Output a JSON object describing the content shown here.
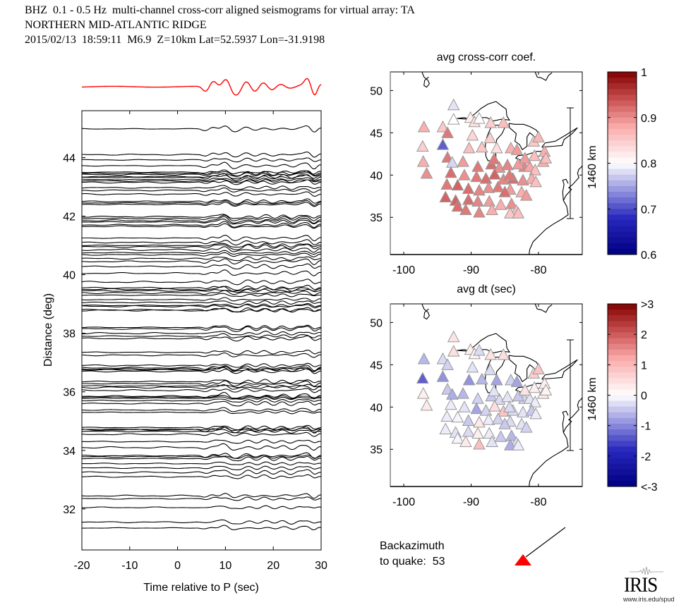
{
  "header": {
    "line1": "BHZ  0.1 - 0.5 Hz  multi-channel cross-corr aligned seismograms for virtual array: TA",
    "line2": "NORTHERN MID-ATLANTIC RIDGE",
    "line3": "2015/02/13  18:59:11  M6.9  Z=10km Lat=52.5937 Lon=-31.9198"
  },
  "chart_data": [
    {
      "type": "line",
      "name": "aligned-seismograms",
      "xlabel": "Time relative to P (sec)",
      "ylabel": "Distance (deg)",
      "xlim": [
        -20,
        30
      ],
      "ylim": [
        30.6,
        45.6
      ],
      "xticks": [
        -20,
        -10,
        0,
        10,
        20,
        30
      ],
      "yticks": [
        32,
        34,
        36,
        38,
        40,
        42,
        44
      ],
      "stack_trace_color": "#ff0000",
      "trace_color": "#000000",
      "trace_distances_deg": [
        44.98,
        44.1,
        43.92,
        43.72,
        43.5,
        43.46,
        43.42,
        43.35,
        43.32,
        43.25,
        43.2,
        43.15,
        42.97,
        42.88,
        42.75,
        42.5,
        42.45,
        42.4,
        41.98,
        41.92,
        41.85,
        41.8,
        41.7,
        41.65,
        41.25,
        41.1,
        41.0,
        40.95,
        40.85,
        40.75,
        40.68,
        40.55,
        40.45,
        40.28,
        40.05,
        39.75,
        39.55,
        39.5,
        39.45,
        39.38,
        39.3,
        39.15,
        39.05,
        38.95,
        38.92,
        38.8,
        38.78,
        38.2,
        38.15,
        38.0,
        37.9,
        37.82,
        37.35,
        37.25,
        36.9,
        36.82,
        36.78,
        36.75,
        36.7,
        36.35,
        36.28,
        36.2,
        36.15,
        36.05,
        35.85,
        35.82,
        35.78,
        35.7,
        35.6,
        35.38,
        35.3,
        34.78,
        34.72,
        34.7,
        34.65,
        34.55,
        34.3,
        34.1,
        33.82,
        33.78,
        33.72,
        33.55,
        33.4,
        33.25,
        33.1,
        32.45,
        32.35,
        32.05,
        31.55,
        31.35
      ]
    },
    {
      "type": "scatter",
      "name": "avg-cross-corr-map",
      "title": "avg cross-corr coef.",
      "xlim": [
        -102,
        -73.5
      ],
      "ylim": [
        30.6,
        52.2
      ],
      "xticks": [
        -100,
        -90,
        -80
      ],
      "yticks": [
        35,
        40,
        45,
        50
      ],
      "scale_bar_label": "1460 km",
      "colorbar": {
        "min": 0.6,
        "max": 1.0,
        "ticks": [
          "1",
          "0.9",
          "0.8",
          "0.7",
          "0.6"
        ]
      },
      "stations": [
        [
          -97,
          45.7,
          0.9
        ],
        [
          -94.2,
          45.7,
          0.87
        ],
        [
          -93.5,
          45,
          0.95
        ],
        [
          -97.2,
          43.4,
          0.86
        ],
        [
          -94.2,
          43.6,
          0.68
        ],
        [
          -93.5,
          42.1,
          0.95
        ],
        [
          -97.1,
          41.6,
          0.9
        ],
        [
          -96.6,
          40.2,
          0.93
        ],
        [
          -92.6,
          48.3,
          0.78
        ],
        [
          -92.6,
          46.6,
          0.8
        ],
        [
          -92.8,
          41.5,
          0.77
        ],
        [
          -90.1,
          46.8,
          0.82
        ],
        [
          -89.5,
          46.3,
          0.84
        ],
        [
          -87.1,
          46.2,
          0.86
        ],
        [
          -85.2,
          46.2,
          0.88
        ],
        [
          -88.8,
          46.7,
          0.8
        ],
        [
          -89.8,
          44.7,
          0.85
        ],
        [
          -87.2,
          44.4,
          0.86
        ],
        [
          -90.3,
          43.2,
          0.88
        ],
        [
          -88.4,
          43.3,
          0.87
        ],
        [
          -86.2,
          43.2,
          0.84
        ],
        [
          -84.1,
          43.2,
          0.9
        ],
        [
          -83.2,
          43.0,
          0.92
        ],
        [
          -80.7,
          44.0,
          0.87
        ],
        [
          -80.0,
          44.5,
          0.89
        ],
        [
          -82.1,
          41.0,
          0.94
        ],
        [
          -79.3,
          41.6,
          0.9
        ],
        [
          -79.1,
          42.8,
          0.9
        ],
        [
          -78.9,
          42.0,
          0.88
        ],
        [
          -91.2,
          41.6,
          0.92
        ],
        [
          -89.0,
          41.0,
          0.95
        ],
        [
          -87.0,
          41.3,
          0.96
        ],
        [
          -85.8,
          40.9,
          0.93
        ],
        [
          -84.6,
          41.2,
          0.94
        ],
        [
          -83.0,
          41.3,
          0.92
        ],
        [
          -81.3,
          41.0,
          0.91
        ],
        [
          -80.5,
          40.6,
          0.88
        ],
        [
          -93.0,
          40.3,
          0.96
        ],
        [
          -91.0,
          40.0,
          0.93
        ],
        [
          -89.2,
          39.8,
          0.95
        ],
        [
          -87.8,
          39.6,
          0.96
        ],
        [
          -86.5,
          40.1,
          0.97
        ],
        [
          -85.2,
          39.5,
          0.94
        ],
        [
          -83.8,
          39.6,
          0.96
        ],
        [
          -82.3,
          39.4,
          0.93
        ],
        [
          -81.0,
          39.6,
          0.9
        ],
        [
          -80.4,
          39.2,
          0.88
        ],
        [
          -93.6,
          38.9,
          0.95
        ],
        [
          -92.0,
          38.8,
          0.97
        ],
        [
          -90.4,
          38.4,
          0.96
        ],
        [
          -88.8,
          38.2,
          0.94
        ],
        [
          -87.4,
          38.5,
          0.93
        ],
        [
          -86.0,
          38.6,
          0.95
        ],
        [
          -84.2,
          38.3,
          0.92
        ],
        [
          -82.5,
          38.0,
          0.9
        ],
        [
          -81.8,
          37.6,
          0.92
        ],
        [
          -93.8,
          37.4,
          0.97
        ],
        [
          -92.3,
          37.0,
          0.97
        ],
        [
          -90.4,
          37.1,
          0.96
        ],
        [
          -89.0,
          36.9,
          0.94
        ],
        [
          -87.3,
          36.9,
          0.92
        ],
        [
          -85.6,
          36.5,
          0.9
        ],
        [
          -84.0,
          36.6,
          0.93
        ],
        [
          -83.3,
          35.8,
          0.88
        ],
        [
          -88.8,
          35.6,
          0.94
        ],
        [
          -92.0,
          36.3,
          0.96
        ],
        [
          -90.8,
          35.9,
          0.95
        ],
        [
          -86.9,
          35.9,
          0.9
        ],
        [
          -84.2,
          35.5,
          0.87
        ],
        [
          -83.0,
          35.5,
          0.88
        ],
        [
          -85.0,
          38.0,
          0.96
        ],
        [
          -86.6,
          41.9,
          0.95
        ],
        [
          -84.3,
          40.0,
          0.95
        ],
        [
          -82.0,
          42.0,
          0.92
        ],
        [
          -80.6,
          42.3,
          0.88
        ]
      ]
    },
    {
      "type": "scatter",
      "name": "avg-dt-map",
      "title": "avg dt (sec)",
      "xlim": [
        -102,
        -73.5
      ],
      "ylim": [
        30.6,
        52.2
      ],
      "xticks": [
        -100,
        -90,
        -80
      ],
      "yticks": [
        35,
        40,
        45,
        50
      ],
      "scale_bar_label": "1460 km",
      "colorbar": {
        "min": -3,
        "max": 3,
        "ticks": [
          ">3",
          "2",
          "1",
          "0",
          "-1",
          "-2",
          "<-3"
        ]
      },
      "stations": [
        [
          -97,
          45.7,
          -0.8
        ],
        [
          -94.2,
          45.7,
          -0.4
        ],
        [
          -93.5,
          45,
          -0.5
        ],
        [
          -97.2,
          43.4,
          -1.8
        ],
        [
          -94.2,
          43.6,
          -1.2
        ],
        [
          -93.5,
          42.1,
          -0.6
        ],
        [
          -97.1,
          41.6,
          0.3
        ],
        [
          -96.6,
          40.2,
          0.4
        ],
        [
          -92.6,
          48.3,
          0.5
        ],
        [
          -92.6,
          46.6,
          0.6
        ],
        [
          -92.8,
          41.5,
          -0.9
        ],
        [
          -90.1,
          46.8,
          0.3
        ],
        [
          -89.5,
          46.3,
          0.2
        ],
        [
          -87.1,
          46.2,
          0.5
        ],
        [
          -85.2,
          46.2,
          0.6
        ],
        [
          -88.8,
          46.7,
          -0.4
        ],
        [
          -89.8,
          44.7,
          -0.3
        ],
        [
          -87.2,
          44.4,
          -0.4
        ],
        [
          -90.3,
          43.2,
          -1.2
        ],
        [
          -88.4,
          43.3,
          -0.8
        ],
        [
          -86.2,
          43.2,
          -1.0
        ],
        [
          -84.1,
          43.2,
          -0.5
        ],
        [
          -83.2,
          43.0,
          -1.0
        ],
        [
          -80.7,
          44.0,
          0.9
        ],
        [
          -80.0,
          44.5,
          1.1
        ],
        [
          -82.1,
          41.0,
          -0.5
        ],
        [
          -79.3,
          41.6,
          0.4
        ],
        [
          -79.1,
          42.8,
          0.3
        ],
        [
          -78.9,
          42.0,
          0.2
        ],
        [
          -91.2,
          41.6,
          -0.8
        ],
        [
          -89.0,
          41.0,
          -0.5
        ],
        [
          -87.0,
          41.3,
          -0.6
        ],
        [
          -85.8,
          40.9,
          -0.4
        ],
        [
          -84.6,
          41.2,
          -0.3
        ],
        [
          -83.0,
          41.3,
          -0.6
        ],
        [
          -81.3,
          41.0,
          -0.3
        ],
        [
          -80.5,
          40.6,
          -0.2
        ],
        [
          -93.0,
          40.3,
          -0.2
        ],
        [
          -91.0,
          40.0,
          -0.3
        ],
        [
          -89.2,
          39.8,
          -1.0
        ],
        [
          -87.8,
          39.6,
          -0.5
        ],
        [
          -86.5,
          40.1,
          0.6
        ],
        [
          -85.2,
          39.5,
          1.1
        ],
        [
          -83.8,
          39.6,
          -0.4
        ],
        [
          -82.3,
          39.4,
          -0.3
        ],
        [
          -81.0,
          39.6,
          -0.6
        ],
        [
          -80.4,
          39.2,
          -0.2
        ],
        [
          -93.6,
          38.9,
          -0.2
        ],
        [
          -92.0,
          38.8,
          -0.1
        ],
        [
          -90.4,
          38.4,
          -0.6
        ],
        [
          -88.8,
          38.2,
          0.4
        ],
        [
          -87.4,
          38.5,
          -0.2
        ],
        [
          -86.0,
          38.6,
          -0.5
        ],
        [
          -84.2,
          38.3,
          -0.4
        ],
        [
          -82.5,
          38.0,
          -0.3
        ],
        [
          -81.8,
          37.6,
          -0.5
        ],
        [
          -93.8,
          37.4,
          -0.2
        ],
        [
          -92.3,
          37.0,
          -0.3
        ],
        [
          -90.4,
          37.1,
          -0.4
        ],
        [
          -89.0,
          36.9,
          0.3
        ],
        [
          -87.3,
          36.9,
          -0.2
        ],
        [
          -85.6,
          36.5,
          -0.6
        ],
        [
          -84.0,
          36.6,
          -0.8
        ],
        [
          -83.3,
          35.8,
          -0.4
        ],
        [
          -88.8,
          35.6,
          1.2
        ],
        [
          -92.0,
          36.3,
          -0.1
        ],
        [
          -90.8,
          35.9,
          0.4
        ],
        [
          -86.9,
          35.9,
          -0.3
        ],
        [
          -84.2,
          35.5,
          -0.9
        ],
        [
          -83.0,
          35.5,
          -0.2
        ],
        [
          -85.0,
          38.0,
          -0.6
        ],
        [
          -86.6,
          41.9,
          -0.3
        ],
        [
          -84.3,
          40.0,
          -0.4
        ],
        [
          -82.0,
          42.0,
          0.5
        ],
        [
          -80.6,
          42.3,
          0.3
        ]
      ]
    }
  ],
  "backazimuth": {
    "label_line1": "Backazimuth",
    "label_line2": "to quake:  53",
    "value_deg": 53,
    "marker_color": "#ff0000"
  },
  "logo": {
    "name": "IRIS",
    "url": "www.iris.edu/spud"
  }
}
